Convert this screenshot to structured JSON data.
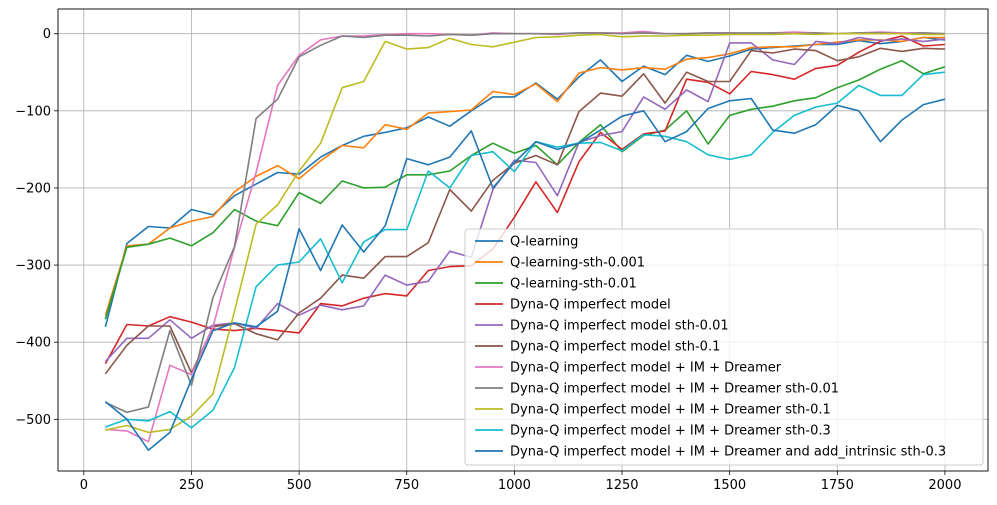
{
  "chart_data": {
    "type": "line",
    "title": "",
    "xlabel": "",
    "ylabel": "",
    "xlim": [
      -60,
      2100
    ],
    "ylim": [
      -567,
      32
    ],
    "xticks": [
      0,
      250,
      500,
      750,
      1000,
      1250,
      1500,
      1750,
      2000
    ],
    "yticks": [
      0,
      -100,
      -200,
      -300,
      -400,
      -500
    ],
    "grid": true,
    "legend_position": "lower right",
    "x": [
      50,
      100,
      150,
      200,
      250,
      300,
      350,
      400,
      450,
      500,
      550,
      600,
      650,
      700,
      750,
      800,
      850,
      900,
      950,
      1000,
      1050,
      1100,
      1150,
      1200,
      1250,
      1300,
      1350,
      1400,
      1450,
      1500,
      1550,
      1600,
      1650,
      1700,
      1750,
      1800,
      1850,
      1900,
      1950,
      2000
    ],
    "series": [
      {
        "name": "Q-learning",
        "color": "#1f77b4",
        "values": [
          -380,
          -272,
          -250,
          -252,
          -228,
          -235,
          -210,
          -195,
          -180,
          -182,
          -160,
          -145,
          -133,
          -128,
          -122,
          -108,
          -120,
          -100,
          -82,
          -82,
          -64,
          -85,
          -56,
          -34,
          -62,
          -42,
          -53,
          -28,
          -36,
          -29,
          -20,
          -18,
          -16,
          -14,
          -14,
          -9,
          -13,
          -10,
          -5,
          -8
        ]
      },
      {
        "name": "Q-learning-sth-0.001",
        "color": "#ff7f0e",
        "values": [
          -365,
          -275,
          -273,
          -252,
          -243,
          -237,
          -205,
          -185,
          -171,
          -188,
          -165,
          -145,
          -148,
          -118,
          -124,
          -103,
          -101,
          -99,
          -75,
          -79,
          -65,
          -88,
          -51,
          -44,
          -47,
          -44,
          -46,
          -33,
          -31,
          -26,
          -18,
          -17,
          -17,
          -14,
          -11,
          -8,
          -8,
          -10,
          -5,
          -5
        ]
      },
      {
        "name": "Q-learning-sth-0.01",
        "color": "#2ca02c",
        "values": [
          -370,
          -277,
          -273,
          -265,
          -275,
          -258,
          -228,
          -243,
          -249,
          -206,
          -220,
          -191,
          -200,
          -199,
          -183,
          -183,
          -178,
          -158,
          -142,
          -155,
          -145,
          -170,
          -141,
          -118,
          -153,
          -132,
          -125,
          -100,
          -143,
          -106,
          -98,
          -94,
          -87,
          -83,
          -70,
          -60,
          -46,
          -35,
          -52,
          -43
        ]
      },
      {
        "name": "Dyna-Q imperfect model",
        "color": "#d62728",
        "values": [
          -428,
          -377,
          -379,
          -367,
          -374,
          -383,
          -385,
          -382,
          -385,
          -388,
          -350,
          -353,
          -343,
          -337,
          -340,
          -307,
          -302,
          -301,
          -279,
          -238,
          -192,
          -232,
          -166,
          -128,
          -150,
          -130,
          -126,
          -59,
          -63,
          -78,
          -49,
          -53,
          -59,
          -45,
          -41,
          -24,
          -10,
          -3,
          -16,
          -14
        ]
      },
      {
        "name": "Dyna-Q imperfect model sth-0.01",
        "color": "#9467bd",
        "values": [
          -425,
          -395,
          -395,
          -371,
          -395,
          -378,
          -375,
          -382,
          -350,
          -365,
          -352,
          -358,
          -353,
          -313,
          -326,
          -321,
          -282,
          -290,
          -202,
          -164,
          -167,
          -210,
          -141,
          -132,
          -127,
          -82,
          -98,
          -73,
          -88,
          -12,
          -12,
          -34,
          -40,
          -10,
          -13,
          -5,
          -9,
          -7,
          -10,
          -7
        ]
      },
      {
        "name": "Dyna-Q imperfect model sth-0.1",
        "color": "#8c564b",
        "values": [
          -441,
          -404,
          -379,
          -379,
          -440,
          -380,
          -376,
          -389,
          -397,
          -362,
          -343,
          -313,
          -317,
          -289,
          -289,
          -271,
          -202,
          -230,
          -190,
          -168,
          -158,
          -170,
          -101,
          -77,
          -81,
          -52,
          -90,
          -50,
          -62,
          -62,
          -22,
          -25,
          -20,
          -22,
          -35,
          -30,
          -19,
          -23,
          -19,
          -20
        ]
      },
      {
        "name": "Dyna-Q imperfect model + IM + Dreamer",
        "color": "#e377c2",
        "values": [
          -513,
          -515,
          -529,
          -430,
          -442,
          -380,
          -277,
          -180,
          -67,
          -28,
          -8,
          -3,
          -3,
          -1,
          0,
          0,
          -1,
          -2,
          1,
          0,
          0,
          -1,
          1,
          1,
          1,
          3,
          0,
          0,
          1,
          1,
          0,
          1,
          2,
          1,
          0,
          1,
          2,
          1,
          1,
          0
        ]
      },
      {
        "name": "Dyna-Q imperfect model + IM + Dreamer sth-0.01",
        "color": "#7f7f7f",
        "values": [
          -478,
          -491,
          -484,
          -385,
          -456,
          -342,
          -276,
          -110,
          -85,
          -30,
          -15,
          -3,
          -5,
          -2,
          -2,
          -3,
          -1,
          -2,
          0,
          0,
          0,
          0,
          1,
          1,
          0,
          1,
          0,
          0,
          1,
          1,
          1,
          1,
          0,
          1,
          0,
          1,
          1,
          0,
          1,
          0
        ]
      },
      {
        "name": "Dyna-Q imperfect model + IM + Dreamer sth-0.1",
        "color": "#bcbd22",
        "values": [
          -514,
          -508,
          -517,
          -513,
          -496,
          -467,
          -360,
          -247,
          -222,
          -178,
          -142,
          -70,
          -62,
          -10,
          -20,
          -18,
          -6,
          -14,
          -17,
          -11,
          -5,
          -4,
          -2,
          -1,
          -4,
          -3,
          -3,
          -2,
          -2,
          -1,
          -1,
          -1,
          0,
          -1,
          0,
          0,
          0,
          0,
          -1,
          -1
        ]
      },
      {
        "name": "Dyna-Q imperfect model + IM + Dreamer sth-0.3",
        "color": "#17becf",
        "values": [
          -510,
          -500,
          -502,
          -490,
          -511,
          -488,
          -433,
          -328,
          -300,
          -296,
          -266,
          -323,
          -270,
          -254,
          -254,
          -178,
          -200,
          -158,
          -153,
          -179,
          -140,
          -147,
          -142,
          -141,
          -152,
          -131,
          -133,
          -140,
          -157,
          -163,
          -157,
          -128,
          -106,
          -95,
          -90,
          -67,
          -80,
          -80,
          -53,
          -50
        ]
      },
      {
        "name": "Dyna-Q imperfect model + IM + Dreamer and add_intrinsic sth-0.3",
        "color": "#1f77b4",
        "values": [
          -477,
          -500,
          -540,
          -517,
          -448,
          -385,
          -375,
          -380,
          -360,
          -253,
          -307,
          -248,
          -283,
          -249,
          -162,
          -170,
          -160,
          -126,
          -200,
          -167,
          -140,
          -150,
          -142,
          -125,
          -107,
          -100,
          -140,
          -127,
          -97,
          -87,
          -84,
          -125,
          -129,
          -118,
          -93,
          -100,
          -140,
          -112,
          -92,
          -85
        ]
      }
    ]
  }
}
